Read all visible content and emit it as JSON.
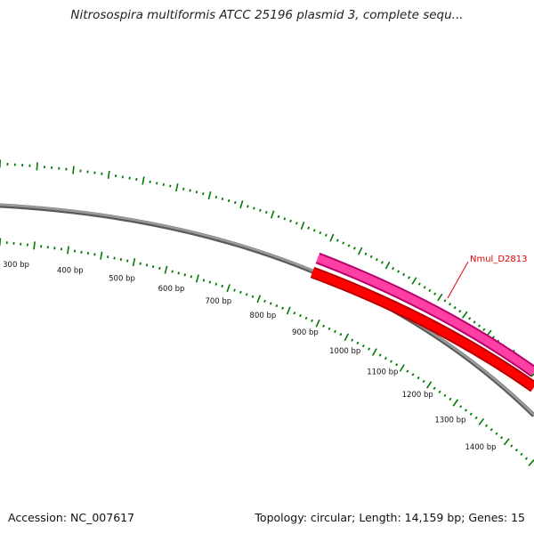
{
  "header": {
    "title": "Nitrosospira multiformis ATCC 25196 plasmid 3, complete sequ..."
  },
  "footer": {
    "accession": "Accession: NC_007617",
    "summary": "Topology: circular; Length: 14,159 bp; Genes: 15"
  },
  "map": {
    "ruler_labels": [
      "300 bp",
      "400 bp",
      "500 bp",
      "600 bp",
      "700 bp",
      "800 bp",
      "900 bp",
      "1000 bp",
      "1100 bp",
      "1200 bp",
      "1300 bp",
      "1400 bp"
    ],
    "genes": [
      {
        "label": "Nmul_D2813",
        "color": "#ff3fa4",
        "strand": "forward"
      },
      {
        "label": "",
        "color": "#ff0000",
        "strand": "reverse"
      }
    ],
    "colors": {
      "backbone": "#888888",
      "ticks": "#007a00",
      "label": "#e00000"
    }
  }
}
